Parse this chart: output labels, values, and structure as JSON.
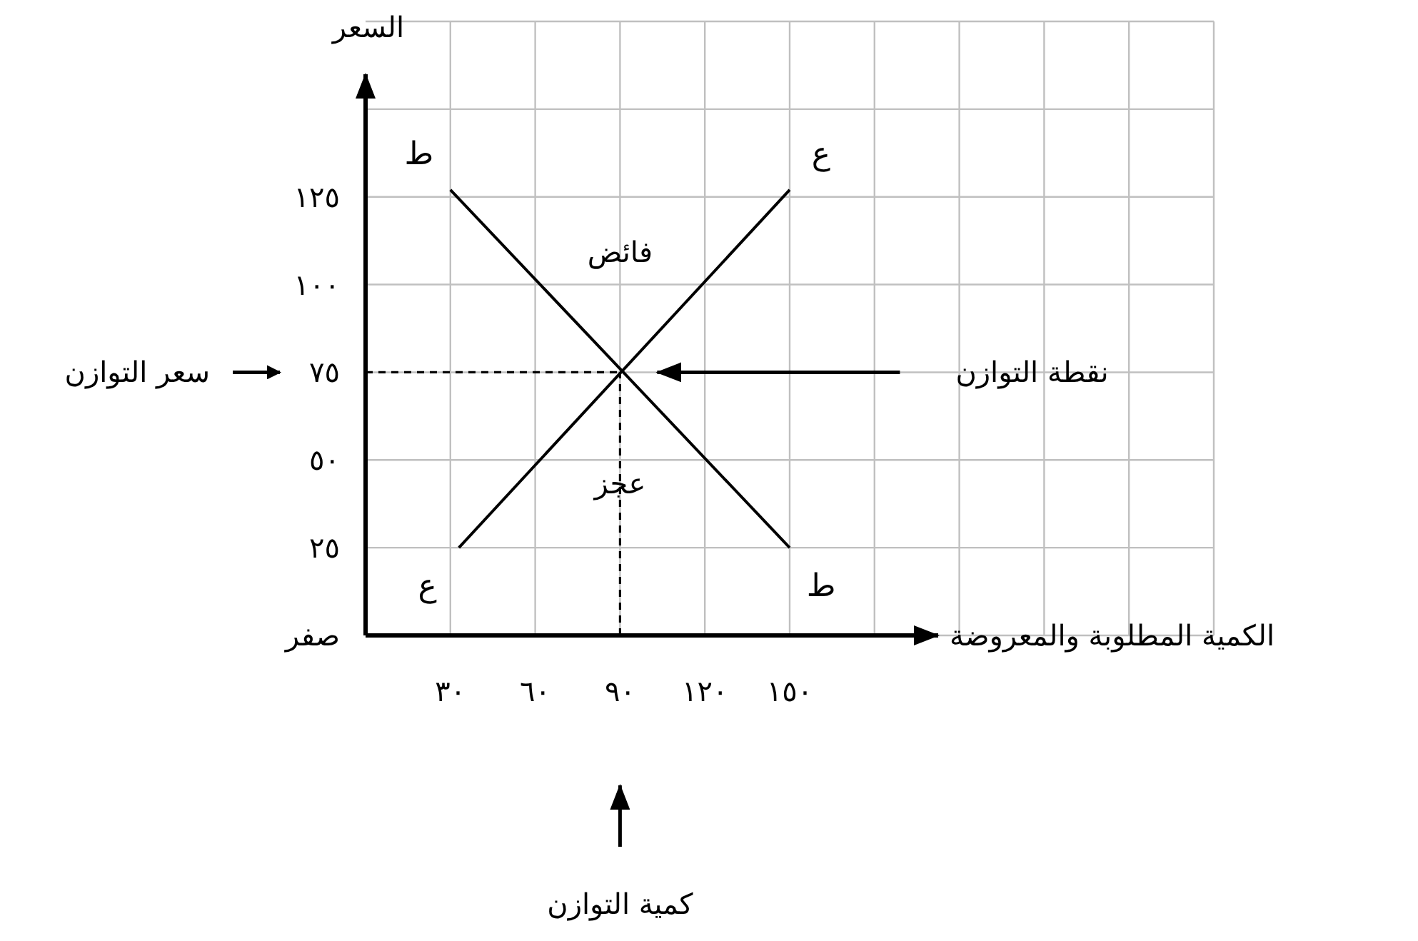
{
  "chart_data": {
    "type": "line",
    "xlabel": "الكمية المطلوبة والمعروضة",
    "ylabel": "السعر",
    "series": [
      {
        "name": "ط",
        "color": "#000000",
        "x": [
          30,
          150
        ],
        "values": [
          127,
          25
        ]
      },
      {
        "name": "ع",
        "color": "#000000",
        "x": [
          33,
          150
        ],
        "values": [
          25,
          127
        ]
      }
    ],
    "xlim": [
      0,
      300
    ],
    "ylim": [
      0,
      175
    ],
    "xticks": [
      {
        "value": 30,
        "label": "٣٠"
      },
      {
        "value": 60,
        "label": "٦٠"
      },
      {
        "value": 90,
        "label": "٩٠"
      },
      {
        "value": 120,
        "label": "١٢٠"
      },
      {
        "value": 150,
        "label": "١٥٠"
      },
      {
        "value": 180,
        "label": null
      },
      {
        "value": 210,
        "label": null
      },
      {
        "value": 240,
        "label": null
      },
      {
        "value": 270,
        "label": null
      },
      {
        "value": 300,
        "label": null
      }
    ],
    "yticks": [
      {
        "value": 0,
        "label": "صفر"
      },
      {
        "value": 25,
        "label": "٢٥"
      },
      {
        "value": 50,
        "label": "٥٠"
      },
      {
        "value": 75,
        "label": "٧٥"
      },
      {
        "value": 100,
        "label": "١٠٠"
      },
      {
        "value": 125,
        "label": "١٢٥"
      },
      {
        "value": 150,
        "label": null
      },
      {
        "value": 175,
        "label": null
      }
    ],
    "ref_lines": [
      {
        "axis": "x",
        "value": 90,
        "color": "#000000",
        "line_style": "dashed"
      },
      {
        "axis": "y",
        "value": 75,
        "color": "#000000",
        "line_style": "dashed"
      }
    ],
    "annotations": [
      "فائض",
      "عجز",
      "نقطة التوازن",
      "سعر التوازن",
      "كمية التوازن"
    ],
    "grid": true,
    "legend": false,
    "marker": "none",
    "line_style": "solid"
  }
}
